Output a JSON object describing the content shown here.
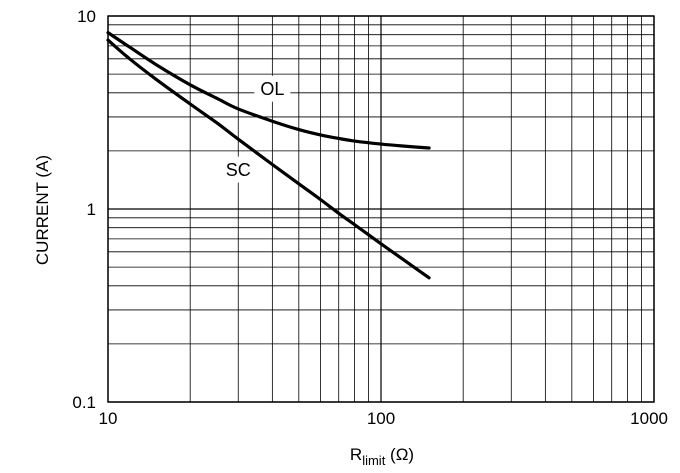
{
  "chart_data": {
    "type": "line",
    "title": "",
    "x_scale": "log",
    "y_scale": "log",
    "xlim": [
      10,
      1000
    ],
    "ylim": [
      0.1,
      10
    ],
    "grid": true,
    "xlabel": {
      "main": "R",
      "sub": "limit",
      "unit": " (Ω)"
    },
    "ylabel": "CURRENT (A)",
    "x_ticks": [
      {
        "value": 10,
        "label": "10"
      },
      {
        "value": 100,
        "label": "100"
      },
      {
        "value": 1000,
        "label": "1000"
      }
    ],
    "y_ticks": [
      {
        "value": 0.1,
        "label": "0.1"
      },
      {
        "value": 1,
        "label": "1"
      },
      {
        "value": 10,
        "label": "10"
      }
    ],
    "series": [
      {
        "name": "OL",
        "color": "#000000",
        "x": [
          10,
          12,
          15,
          20,
          25,
          30,
          40,
          50,
          60,
          70,
          80,
          100,
          120,
          150
        ],
        "y": [
          8.2,
          6.9,
          5.6,
          4.4,
          3.75,
          3.3,
          2.85,
          2.58,
          2.42,
          2.32,
          2.25,
          2.17,
          2.12,
          2.07
        ]
      },
      {
        "name": "SC",
        "color": "#000000",
        "x": [
          10,
          12,
          15,
          20,
          25,
          30,
          40,
          50,
          60,
          70,
          80,
          100,
          120,
          150
        ],
        "y": [
          7.5,
          6.0,
          4.7,
          3.5,
          2.8,
          2.3,
          1.7,
          1.35,
          1.12,
          0.95,
          0.83,
          0.66,
          0.55,
          0.44
        ]
      }
    ],
    "annotations": [
      {
        "text": "OL",
        "series": "OL",
        "x": 40,
        "y": 4.2
      },
      {
        "text": "SC",
        "series": "SC",
        "x": 30,
        "y": 1.6
      }
    ]
  }
}
